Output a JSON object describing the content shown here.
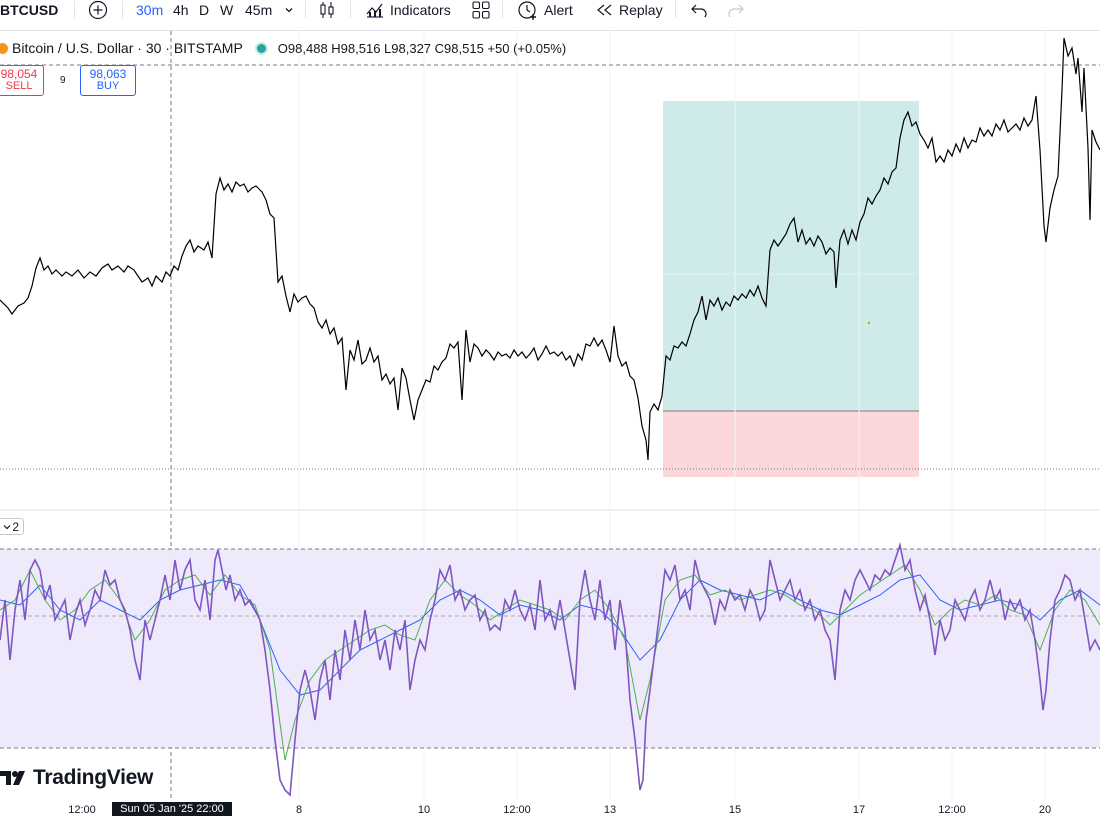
{
  "toolbar": {
    "symbol": "BTCUSD",
    "interval_active": "30m",
    "intervals": [
      "4h",
      "D",
      "W",
      "45m"
    ],
    "indicators_label": "Indicators",
    "alert_label": "Alert",
    "replay_label": "Replay",
    "icons": [
      "search-icon",
      "add-symbol-icon",
      "interval-dropdown-icon",
      "candle-type-icon",
      "indicators-icon",
      "layout-icon",
      "alert-icon",
      "replay-icon",
      "undo-icon",
      "redo-icon"
    ]
  },
  "legend": {
    "title": "Bitcoin / U.S. Dollar · 30 · BITSTAMP",
    "ohlc": "O98,488 H98,516 L98,327 C98,515 +50 (+0.05%)"
  },
  "trading": {
    "sell_price": "98,054",
    "sell_label": "SELL",
    "spread": "9",
    "buy_price": "98,063",
    "buy_label": "BUY"
  },
  "indicator_pane": {
    "collapse_count": "2"
  },
  "logo_text": "TradingView",
  "time_axis": {
    "labels": [
      "12:00",
      "8",
      "10",
      "12:00",
      "13",
      "15",
      "17",
      "12:00",
      "20"
    ],
    "cursor_label": "Sun 05 Jan '25   22:00"
  },
  "colors": {
    "price_line": "#000000",
    "profit_zone": "#26a69a",
    "loss_zone": "#f23645",
    "rsi_line": "#7e57c2",
    "rsi_ma_green": "#4caf50",
    "rsi_ma_blue": "#2962ff",
    "rsi_band": "#efeafb",
    "accent": "#2962ff"
  }
}
